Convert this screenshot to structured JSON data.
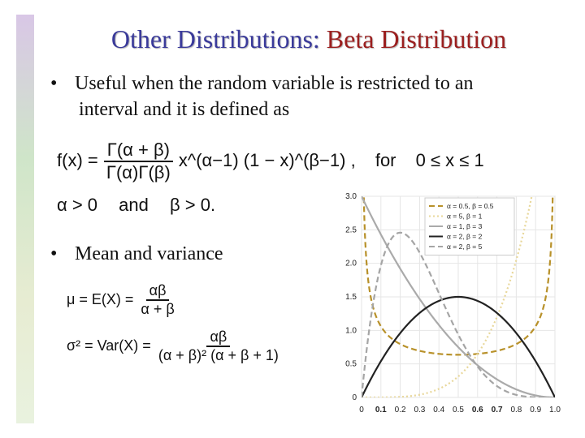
{
  "title": {
    "part1": "Other Distributions:",
    "part2": "Beta Distribution"
  },
  "bullets": [
    {
      "marker": "•",
      "line1": "Useful when the random variable is restricted to an",
      "line2": "interval and it is  defined as"
    },
    {
      "marker": "•",
      "text": "Mean and variance"
    }
  ],
  "formulas": {
    "pdf_lhs": "f(x) =",
    "pdf_num": "Γ(α + β)",
    "pdf_den": "Γ(α)Γ(β)",
    "pdf_rhs": "x^(α−1) (1 − x)^(β−1) ,",
    "pdf_for": "for",
    "pdf_range": "0 ≤ x ≤ 1",
    "cond_alpha": "α > 0",
    "cond_and": "and",
    "cond_beta": "β > 0.",
    "mean_lhs": "μ = E(X) =",
    "mean_num": "αβ",
    "mean_den": "α + β",
    "var_lhs": "σ² = Var(X) =",
    "var_num": "αβ",
    "var_den": "(α + β)² (α + β + 1)"
  },
  "chart_data": {
    "type": "line",
    "x_range": [
      0,
      1
    ],
    "ylim": [
      0,
      3
    ],
    "x_ticks": [
      "0",
      "0.1",
      "0.2",
      "0.3",
      "0.4",
      "0.5",
      "0.6",
      "0.7",
      "0.8",
      "0.9",
      "1.0"
    ],
    "y_ticks": [
      "0",
      "0.5",
      "1.0",
      "1.5",
      "2.0",
      "2.5",
      "3.0"
    ],
    "grid": true,
    "legend_position": "top-right",
    "series": [
      {
        "name": "α = 0.5, β = 0.5",
        "alpha": 0.5,
        "beta": 0.5,
        "color": "#b8912a",
        "dash": "dashed"
      },
      {
        "name": "α = 5, β = 1",
        "alpha": 5,
        "beta": 1,
        "color": "#e8d79a",
        "dash": "dotted"
      },
      {
        "name": "α = 1, β = 3",
        "alpha": 1,
        "beta": 3,
        "color": "#aaaaaa",
        "dash": "solid"
      },
      {
        "name": "α = 2, β = 2",
        "alpha": 2,
        "beta": 2,
        "color": "#222222",
        "dash": "solid"
      },
      {
        "name": "α = 2, β = 5",
        "alpha": 2,
        "beta": 5,
        "color": "#a5a5a5",
        "dash": "dashed"
      }
    ]
  }
}
